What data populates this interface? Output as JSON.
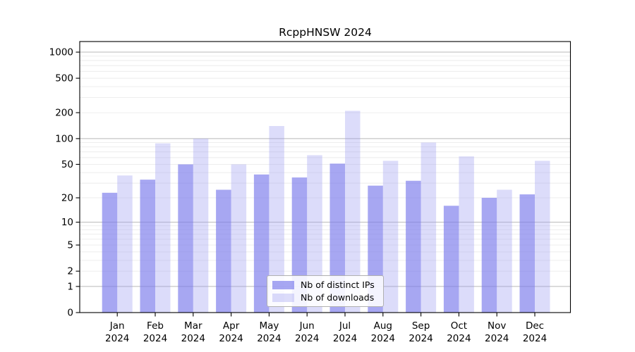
{
  "chart_data": {
    "type": "bar",
    "title": "RcppHNSW 2024",
    "categories": [
      "Jan",
      "Feb",
      "Mar",
      "Apr",
      "May",
      "Jun",
      "Jul",
      "Aug",
      "Sep",
      "Oct",
      "Nov",
      "Dec"
    ],
    "year_label": "2024",
    "series": [
      {
        "name": "Nb of distinct IPs",
        "color": "rgba(120,120,235,0.65)",
        "values": [
          23,
          33,
          50,
          25,
          38,
          35,
          51,
          28,
          32,
          16,
          20,
          22
        ]
      },
      {
        "name": "Nb of downloads",
        "color": "rgba(155,155,240,0.35)",
        "values": [
          37,
          88,
          100,
          50,
          140,
          64,
          210,
          55,
          90,
          62,
          25,
          55
        ]
      }
    ],
    "yticks": [
      0,
      1,
      2,
      5,
      10,
      20,
      50,
      100,
      200,
      500,
      1000
    ],
    "ylim": [
      0,
      1325
    ],
    "scale": "log1p",
    "grid": true,
    "legend_position": "bottom-center",
    "colors": {
      "grid_major": "#b9b9b9",
      "grid_minor": "#ebebeb",
      "axis": "#000000",
      "text": "#000000",
      "background": "#ffffff"
    }
  }
}
